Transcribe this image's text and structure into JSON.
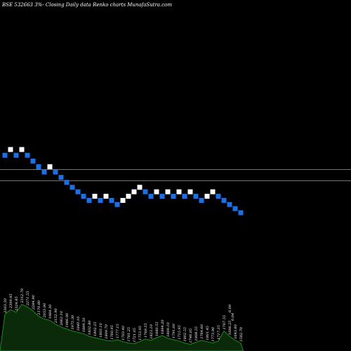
{
  "chart_data": {
    "type": "renko",
    "title": "BSE 532663 3%-  Closing Daily data  Renko  charts MunafaSutra.com",
    "colors": {
      "background": "#000000",
      "up_brick": "#ffffff",
      "down_brick": "#1e6fe0",
      "reference_line": "#b8621b",
      "volume_fill": "#0a2a0a",
      "volume_stroke": "#1f8a1f"
    },
    "reference_levels": [
      2120,
      1985
    ],
    "bricks": [
      {
        "dir": "down",
        "level": 2290
      },
      {
        "dir": "up",
        "level": 2360
      },
      {
        "dir": "down",
        "level": 2290
      },
      {
        "dir": "up",
        "level": 2360
      },
      {
        "dir": "down",
        "level": 2290
      },
      {
        "dir": "down",
        "level": 2220
      },
      {
        "dir": "down",
        "level": 2150
      },
      {
        "dir": "down",
        "level": 2085
      },
      {
        "dir": "up",
        "level": 2150
      },
      {
        "dir": "down",
        "level": 2085
      },
      {
        "dir": "down",
        "level": 2020
      },
      {
        "dir": "down",
        "level": 1960
      },
      {
        "dir": "down",
        "level": 1900
      },
      {
        "dir": "down",
        "level": 1845
      },
      {
        "dir": "down",
        "level": 1790
      },
      {
        "dir": "down",
        "level": 1740
      },
      {
        "dir": "up",
        "level": 1790
      },
      {
        "dir": "down",
        "level": 1740
      },
      {
        "dir": "up",
        "level": 1790
      },
      {
        "dir": "down",
        "level": 1740
      },
      {
        "dir": "down",
        "level": 1690
      },
      {
        "dir": "up",
        "level": 1740
      },
      {
        "dir": "up",
        "level": 1790
      },
      {
        "dir": "up",
        "level": 1845
      },
      {
        "dir": "up",
        "level": 1900
      },
      {
        "dir": "down",
        "level": 1845
      },
      {
        "dir": "down",
        "level": 1790
      },
      {
        "dir": "up",
        "level": 1845
      },
      {
        "dir": "down",
        "level": 1790
      },
      {
        "dir": "up",
        "level": 1845
      },
      {
        "dir": "down",
        "level": 1790
      },
      {
        "dir": "up",
        "level": 1845
      },
      {
        "dir": "down",
        "level": 1790
      },
      {
        "dir": "up",
        "level": 1845
      },
      {
        "dir": "down",
        "level": 1790
      },
      {
        "dir": "down",
        "level": 1740
      },
      {
        "dir": "up",
        "level": 1790
      },
      {
        "dir": "up",
        "level": 1845
      },
      {
        "dir": "down",
        "level": 1790
      },
      {
        "dir": "down",
        "level": 1740
      },
      {
        "dir": "down",
        "level": 1690
      },
      {
        "dir": "down",
        "level": 1640
      },
      {
        "dir": "down",
        "level": 1590
      }
    ],
    "volume": [
      0.55,
      0.62,
      0.58,
      0.7,
      0.66,
      0.6,
      0.52,
      0.48,
      0.46,
      0.4,
      0.36,
      0.33,
      0.3,
      0.28,
      0.26,
      0.22,
      0.2,
      0.18,
      0.16,
      0.15,
      0.17,
      0.14,
      0.12,
      0.11,
      0.14,
      0.18,
      0.16,
      0.2,
      0.23,
      0.19,
      0.17,
      0.15,
      0.12,
      0.1,
      0.13,
      0.16,
      0.14,
      0.12,
      0.15,
      0.3,
      0.22,
      0.16,
      0.12
    ],
    "volume_labels": [
      "2303.30",
      "2399.95",
      "2324.85",
      "2312.70",
      "2271.55",
      "2284.90",
      "2170.80",
      "2053.90",
      "1984.30",
      "2152.90",
      "2062.10",
      "1986.00",
      "1975.30",
      "1840.10",
      "1899.50",
      "1832.80",
      "1802.25",
      "1803.10",
      "1809.70",
      "1760.95",
      "1777.15",
      "1703.40",
      "1781.25",
      "1721.05",
      "1753.95",
      "1769.55",
      "1823.10",
      "1880.55",
      "1894.20",
      "1809.10",
      "1791.00",
      "1715.95",
      "1802.55",
      "1746.05",
      "1808.55",
      "1784.60",
      "1801.45",
      "1773.90",
      "1717.35",
      "1767.55",
      "1696.25",
      "1643.80",
      "1582.70"
    ],
    "volume_extra_labels": [
      "6.09",
      "0.04"
    ]
  }
}
